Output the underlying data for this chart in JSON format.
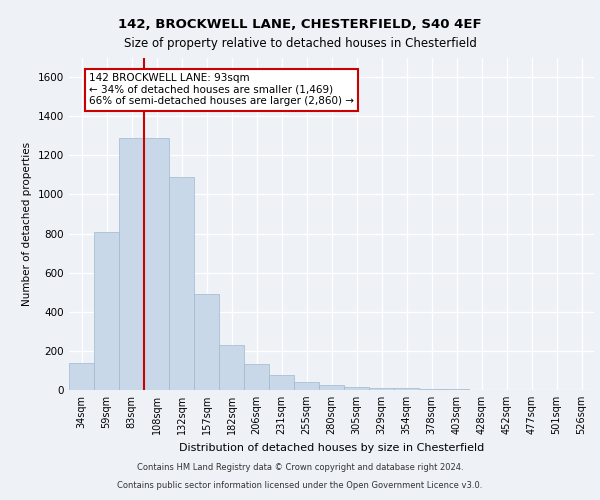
{
  "title_line1": "142, BROCKWELL LANE, CHESTERFIELD, S40 4EF",
  "title_line2": "Size of property relative to detached houses in Chesterfield",
  "xlabel": "Distribution of detached houses by size in Chesterfield",
  "ylabel": "Number of detached properties",
  "categories": [
    "34sqm",
    "59sqm",
    "83sqm",
    "108sqm",
    "132sqm",
    "157sqm",
    "182sqm",
    "206sqm",
    "231sqm",
    "255sqm",
    "280sqm",
    "305sqm",
    "329sqm",
    "354sqm",
    "378sqm",
    "403sqm",
    "428sqm",
    "452sqm",
    "477sqm",
    "501sqm",
    "526sqm"
  ],
  "values": [
    140,
    810,
    1290,
    1290,
    1090,
    490,
    230,
    135,
    75,
    40,
    25,
    15,
    10,
    8,
    5,
    3,
    2,
    1,
    1,
    0,
    0
  ],
  "bar_color": "#c8d8e8",
  "bar_edge_color": "#a0b8d0",
  "vline_color": "#cc0000",
  "vline_x": 2.5,
  "annotation_text": "142 BROCKWELL LANE: 93sqm\n← 34% of detached houses are smaller (1,469)\n66% of semi-detached houses are larger (2,860) →",
  "annotation_box_color": "#ffffff",
  "annotation_box_edge": "#cc0000",
  "ylim": [
    0,
    1700
  ],
  "yticks": [
    0,
    200,
    400,
    600,
    800,
    1000,
    1200,
    1400,
    1600
  ],
  "footer_line1": "Contains HM Land Registry data © Crown copyright and database right 2024.",
  "footer_line2": "Contains public sector information licensed under the Open Government Licence v3.0.",
  "bg_color": "#eef2f7",
  "plot_bg_color": "#eef2f7",
  "grid_color": "#ffffff"
}
